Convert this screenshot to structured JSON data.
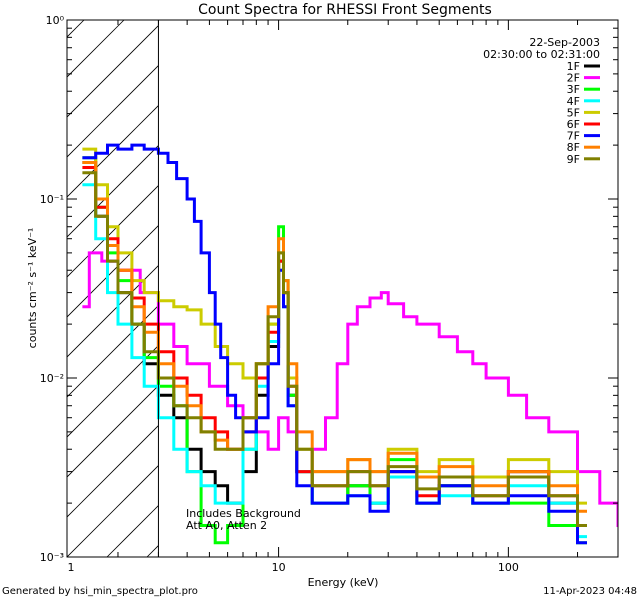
{
  "chart_data": {
    "type": "line",
    "title": "Count Spectra for RHESSI Front Segments",
    "xlabel": "Energy (keV)",
    "ylabel": "counts cm⁻² s⁻¹ keV⁻¹",
    "xscale": "log",
    "yscale": "log",
    "xlim": [
      1.2,
      300
    ],
    "ylim": [
      0.001,
      1.0
    ],
    "x_tick_labels": [
      "1",
      "10",
      "100"
    ],
    "y_tick_labels": [
      "10⁰",
      "10⁻¹",
      "10⁻²",
      "10⁻³"
    ],
    "date": "22-Sep-2003",
    "time_range": "02:30:00 to 02:31:00",
    "annotation_lines": [
      "Includes Background",
      "Att A0, Atten 2"
    ],
    "hatched_region_keV": [
      1.2,
      3.0
    ],
    "footer_left": "Generated by hsi_min_spectra_plot.pro",
    "footer_right": "11-Apr-2023 04:48",
    "series": [
      {
        "name": "1F",
        "color": "#000000",
        "x": [
          1.4,
          1.6,
          1.8,
          2.0,
          2.3,
          2.6,
          3.0,
          3.5,
          4.0,
          4.6,
          5.3,
          6.0,
          7.0,
          8.0,
          9.0,
          10.0,
          10.5,
          11.0,
          12.0,
          14.0,
          17.0,
          20.0,
          25.0,
          30.0,
          40.0,
          50.0,
          70.0,
          100.0,
          150.0,
          200.0
        ],
        "values": [
          0.16,
          0.08,
          0.045,
          0.03,
          0.02,
          0.012,
          0.008,
          0.006,
          0.004,
          0.003,
          0.0025,
          0.002,
          0.003,
          0.008,
          0.015,
          0.045,
          0.03,
          0.008,
          0.003,
          0.002,
          0.002,
          0.0025,
          0.002,
          0.003,
          0.002,
          0.0025,
          0.002,
          0.003,
          0.002,
          0.0015
        ]
      },
      {
        "name": "2F",
        "color": "#ff00ff",
        "x": [
          1.4,
          1.5,
          1.7,
          2.0,
          2.5,
          3.0,
          3.5,
          4.0,
          5.0,
          6.0,
          7.0,
          8.0,
          9.0,
          10.0,
          11.0,
          12.0,
          13.0,
          14.0,
          16.0,
          18.0,
          20.0,
          22.0,
          25.0,
          28.0,
          30.0,
          35.0,
          40.0,
          50.0,
          60.0,
          70.0,
          80.0,
          100.0,
          120.0,
          150.0,
          200.0,
          250.0,
          300.0
        ],
        "values": [
          0.025,
          0.05,
          0.045,
          0.04,
          0.03,
          0.02,
          0.015,
          0.012,
          0.009,
          0.007,
          0.006,
          0.005,
          0.004,
          0.006,
          0.005,
          0.003,
          0.003,
          0.004,
          0.006,
          0.012,
          0.02,
          0.025,
          0.028,
          0.03,
          0.026,
          0.022,
          0.02,
          0.017,
          0.014,
          0.012,
          0.01,
          0.008,
          0.006,
          0.005,
          0.003,
          0.002,
          0.0015
        ]
      },
      {
        "name": "3F",
        "color": "#00ff00",
        "x": [
          1.4,
          1.6,
          1.8,
          2.0,
          2.3,
          2.6,
          3.0,
          3.5,
          4.0,
          4.6,
          5.3,
          6.0,
          7.0,
          8.0,
          9.0,
          10.0,
          10.5,
          11.0,
          12.0,
          14.0,
          17.0,
          20.0,
          25.0,
          30.0,
          40.0,
          50.0,
          70.0,
          100.0,
          150.0,
          200.0
        ],
        "values": [
          0.17,
          0.09,
          0.05,
          0.035,
          0.02,
          0.013,
          0.009,
          0.007,
          0.003,
          0.0015,
          0.0012,
          0.0015,
          0.004,
          0.01,
          0.02,
          0.07,
          0.035,
          0.008,
          0.003,
          0.002,
          0.002,
          0.0025,
          0.002,
          0.0035,
          0.002,
          0.0025,
          0.002,
          0.002,
          0.0015,
          0.0012
        ]
      },
      {
        "name": "4F",
        "color": "#00ffff",
        "x": [
          1.4,
          1.6,
          1.8,
          2.0,
          2.3,
          2.6,
          3.0,
          3.5,
          4.0,
          4.6,
          5.3,
          6.0,
          7.0,
          8.0,
          9.0,
          10.0,
          10.5,
          11.0,
          12.0,
          14.0,
          17.0,
          20.0,
          25.0,
          30.0,
          40.0,
          50.0,
          70.0,
          100.0,
          150.0,
          200.0
        ],
        "values": [
          0.12,
          0.06,
          0.03,
          0.02,
          0.013,
          0.009,
          0.006,
          0.004,
          0.003,
          0.0025,
          0.002,
          0.002,
          0.004,
          0.009,
          0.016,
          0.04,
          0.025,
          0.007,
          0.003,
          0.002,
          0.002,
          0.0022,
          0.002,
          0.0028,
          0.002,
          0.0022,
          0.002,
          0.0025,
          0.002,
          0.0013
        ]
      },
      {
        "name": "5F",
        "color": "#cccc00",
        "x": [
          1.4,
          1.6,
          1.8,
          2.0,
          2.3,
          2.6,
          3.0,
          3.5,
          4.0,
          4.6,
          5.3,
          6.0,
          7.0,
          8.0,
          9.0,
          10.0,
          10.5,
          11.0,
          12.0,
          14.0,
          17.0,
          20.0,
          25.0,
          30.0,
          40.0,
          50.0,
          70.0,
          100.0,
          150.0,
          200.0
        ],
        "values": [
          0.19,
          0.12,
          0.07,
          0.05,
          0.035,
          0.03,
          0.027,
          0.025,
          0.024,
          0.02,
          0.015,
          0.012,
          0.01,
          0.012,
          0.02,
          0.05,
          0.03,
          0.01,
          0.004,
          0.003,
          0.003,
          0.0035,
          0.003,
          0.004,
          0.003,
          0.0035,
          0.0028,
          0.0035,
          0.003,
          0.002
        ]
      },
      {
        "name": "6F",
        "color": "#ff0000",
        "x": [
          1.4,
          1.6,
          1.8,
          2.0,
          2.3,
          2.6,
          3.0,
          3.5,
          4.0,
          4.6,
          5.3,
          6.0,
          7.0,
          8.0,
          9.0,
          10.0,
          10.5,
          11.0,
          12.0,
          14.0,
          17.0,
          20.0,
          25.0,
          30.0,
          40.0,
          50.0,
          70.0,
          100.0,
          150.0,
          200.0
        ],
        "values": [
          0.15,
          0.09,
          0.06,
          0.04,
          0.028,
          0.02,
          0.014,
          0.01,
          0.008,
          0.006,
          0.005,
          0.004,
          0.005,
          0.01,
          0.018,
          0.045,
          0.03,
          0.009,
          0.003,
          0.0025,
          0.0025,
          0.003,
          0.0025,
          0.003,
          0.0022,
          0.0028,
          0.0022,
          0.003,
          0.0022,
          0.0015
        ]
      },
      {
        "name": "7F",
        "color": "#0000ff",
        "x": [
          1.4,
          1.6,
          1.8,
          2.0,
          2.3,
          2.6,
          3.0,
          3.3,
          3.6,
          4.0,
          4.3,
          4.6,
          5.0,
          5.3,
          5.6,
          6.0,
          6.5,
          7.0,
          8.0,
          9.0,
          10.0,
          10.5,
          11.0,
          12.0,
          14.0,
          17.0,
          20.0,
          25.0,
          30.0,
          40.0,
          50.0,
          70.0,
          100.0,
          150.0,
          200.0
        ],
        "values": [
          0.17,
          0.18,
          0.2,
          0.19,
          0.2,
          0.19,
          0.18,
          0.16,
          0.13,
          0.1,
          0.075,
          0.05,
          0.03,
          0.02,
          0.013,
          0.008,
          0.006,
          0.005,
          0.006,
          0.012,
          0.04,
          0.025,
          0.007,
          0.0025,
          0.002,
          0.002,
          0.0022,
          0.0018,
          0.003,
          0.002,
          0.0025,
          0.002,
          0.0022,
          0.0018,
          0.0012
        ]
      },
      {
        "name": "8F",
        "color": "#ff8000",
        "x": [
          1.4,
          1.6,
          1.8,
          2.0,
          2.3,
          2.6,
          3.0,
          3.5,
          4.0,
          4.6,
          5.3,
          6.0,
          7.0,
          8.0,
          9.0,
          10.0,
          10.5,
          11.0,
          12.0,
          14.0,
          17.0,
          20.0,
          25.0,
          30.0,
          40.0,
          50.0,
          70.0,
          100.0,
          150.0,
          200.0
        ],
        "values": [
          0.16,
          0.1,
          0.055,
          0.04,
          0.025,
          0.018,
          0.012,
          0.009,
          0.007,
          0.005,
          0.0045,
          0.004,
          0.006,
          0.012,
          0.025,
          0.06,
          0.035,
          0.012,
          0.005,
          0.003,
          0.003,
          0.0035,
          0.003,
          0.0038,
          0.0028,
          0.0032,
          0.0025,
          0.003,
          0.0025,
          0.0018
        ]
      },
      {
        "name": "9F",
        "color": "#808000",
        "x": [
          1.4,
          1.6,
          1.8,
          2.0,
          2.3,
          2.6,
          3.0,
          3.5,
          4.0,
          4.6,
          5.3,
          6.0,
          7.0,
          8.0,
          9.0,
          10.0,
          10.5,
          11.0,
          12.0,
          14.0,
          17.0,
          20.0,
          25.0,
          30.0,
          40.0,
          50.0,
          70.0,
          100.0,
          150.0,
          200.0
        ],
        "values": [
          0.14,
          0.08,
          0.045,
          0.03,
          0.02,
          0.014,
          0.01,
          0.007,
          0.006,
          0.005,
          0.004,
          0.004,
          0.006,
          0.012,
          0.022,
          0.05,
          0.03,
          0.009,
          0.004,
          0.0025,
          0.0025,
          0.003,
          0.0025,
          0.0032,
          0.0024,
          0.0028,
          0.0022,
          0.0028,
          0.0022,
          0.0015
        ]
      }
    ]
  }
}
